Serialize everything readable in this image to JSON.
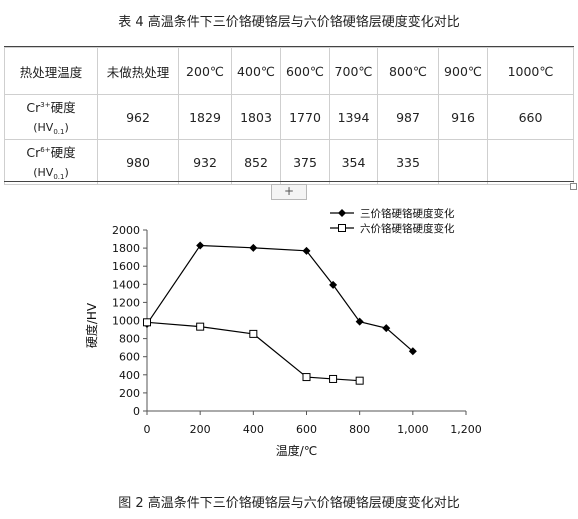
{
  "table_caption": "表 4 高温条件下三价铬硬铬层与六价铬硬铬层硬度变化对比",
  "figure_caption": "图 2 高温条件下三价铬硬铬层与六价铬硬铬层硬度变化对比",
  "table": {
    "headers": [
      "热处理温度",
      "未做热处理",
      "200℃",
      "400℃",
      "600℃",
      "700℃",
      "800℃",
      "900℃",
      "1000℃"
    ],
    "rows": [
      {
        "label_prefix": "Cr",
        "label_sup": "3+",
        "label_suffix": "硬度",
        "unit_prefix": "(HV",
        "unit_sub": "0.1",
        "unit_suffix": ")",
        "cells": [
          "962",
          "1829",
          "1803",
          "1770",
          "1394",
          "987",
          "916",
          "660"
        ]
      },
      {
        "label_prefix": "Cr",
        "label_sup": "6+",
        "label_suffix": "硬度",
        "unit_prefix": "(HV",
        "unit_sub": "0.1",
        "unit_suffix": ")",
        "cells": [
          "980",
          "932",
          "852",
          "375",
          "354",
          "335",
          "",
          ""
        ]
      }
    ],
    "add_button_label": "+"
  },
  "chart_data": {
    "type": "line",
    "xlabel": "温度/℃",
    "ylabel": "硬度/HV",
    "xlim": [
      0,
      1200
    ],
    "ylim": [
      0,
      2000
    ],
    "xticks": [
      0,
      200,
      400,
      600,
      800,
      1000,
      1200
    ],
    "xtick_labels": [
      "0",
      "200",
      "400",
      "600",
      "800",
      "1,000",
      "1,200"
    ],
    "yticks": [
      0,
      200,
      400,
      600,
      800,
      1000,
      1200,
      1400,
      1600,
      1800,
      2000
    ],
    "ytick_labels": [
      "0",
      "200",
      "400",
      "600",
      "800",
      "1000",
      "1200",
      "1400",
      "1600",
      "1800",
      "2000"
    ],
    "grid": false,
    "legend_position": "top-right",
    "series": [
      {
        "name": "三价铬硬铬硬度变化",
        "marker": "diamond",
        "color": "#000000",
        "x": [
          0,
          200,
          400,
          600,
          700,
          800,
          900,
          1000
        ],
        "y": [
          962,
          1829,
          1803,
          1770,
          1394,
          987,
          916,
          660
        ]
      },
      {
        "name": "六价铬硬铬硬度变化",
        "marker": "square-open",
        "color": "#000000",
        "x": [
          0,
          200,
          400,
          600,
          700,
          800
        ],
        "y": [
          980,
          932,
          852,
          375,
          354,
          335
        ]
      }
    ]
  }
}
